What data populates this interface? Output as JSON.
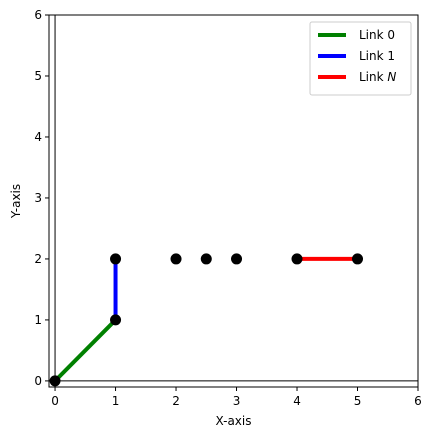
{
  "chart_data": {
    "type": "line",
    "title": "",
    "xlabel": "X-axis",
    "ylabel": "Y-axis",
    "xlim": [
      -0.1,
      6
    ],
    "ylim": [
      -0.1,
      6
    ],
    "xticks": [
      "0",
      "1",
      "2",
      "3",
      "4",
      "5",
      "6"
    ],
    "yticks": [
      "0",
      "1",
      "2",
      "3",
      "4",
      "5",
      "6"
    ],
    "grid": false,
    "legend_position": "top-right",
    "reference_lines": {
      "x": 0,
      "y": 0,
      "color": "#000000"
    },
    "series": [
      {
        "name": "Link 0",
        "legend_main": "Link 0",
        "legend_suffix": "",
        "color": "#008000",
        "points": [
          {
            "x": 0,
            "y": 0
          },
          {
            "x": 1,
            "y": 1
          }
        ]
      },
      {
        "name": "Link 1",
        "legend_main": "Link 1",
        "legend_suffix": "",
        "color": "#0000ff",
        "points": [
          {
            "x": 1,
            "y": 1
          },
          {
            "x": 1,
            "y": 2
          }
        ]
      },
      {
        "name": "Link N",
        "legend_main": "Link ",
        "legend_suffix": "N",
        "color": "#ff0000",
        "points": [
          {
            "x": 4,
            "y": 2
          },
          {
            "x": 5,
            "y": 2
          }
        ]
      }
    ],
    "joints": {
      "color": "#000000",
      "points": [
        {
          "x": 0,
          "y": 0
        },
        {
          "x": 1,
          "y": 1
        },
        {
          "x": 1,
          "y": 2
        },
        {
          "x": 2,
          "y": 2
        },
        {
          "x": 2.5,
          "y": 2
        },
        {
          "x": 3,
          "y": 2
        },
        {
          "x": 4,
          "y": 2
        },
        {
          "x": 5,
          "y": 2
        }
      ]
    }
  }
}
